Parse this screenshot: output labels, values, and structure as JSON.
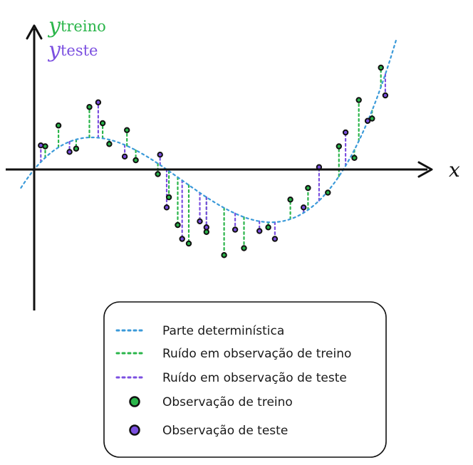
{
  "axes": {
    "x_label": "x",
    "y_train_symbol": "y",
    "y_train_subscript": "treino",
    "y_test_symbol": "y",
    "y_test_subscript": "teste"
  },
  "colors": {
    "deterministic": "#3b9ad9",
    "train": "#2ab54a",
    "test": "#7b4fe0",
    "axis": "#111111"
  },
  "legend": {
    "items": [
      {
        "label": "Parte determinística",
        "kind": "dotted-line",
        "color": "#3b9ad9"
      },
      {
        "label": "Ruído em observação de treino",
        "kind": "dotted-line",
        "color": "#2ab54a"
      },
      {
        "label": "Ruído em observação de teste",
        "kind": "dotted-line",
        "color": "#7b4fe0"
      },
      {
        "label": "Observação de treino",
        "kind": "dot",
        "color": "#2ab54a"
      },
      {
        "label": "Observação de teste",
        "kind": "dot",
        "color": "#7b4fe0"
      }
    ]
  },
  "chart_data": {
    "type": "scatter",
    "deterministic_curve": "cubic trend: rises to a local max, falls to a local min, rises steeply",
    "train_points": [
      {
        "x": 0.25,
        "y": 0.5
      },
      {
        "x": 0.55,
        "y": 0.95
      },
      {
        "x": 0.95,
        "y": 0.45
      },
      {
        "x": 1.25,
        "y": 1.35
      },
      {
        "x": 1.55,
        "y": 1.0
      },
      {
        "x": 1.7,
        "y": 0.55
      },
      {
        "x": 2.1,
        "y": 0.85
      },
      {
        "x": 2.3,
        "y": 0.2
      },
      {
        "x": 2.8,
        "y": -0.1
      },
      {
        "x": 3.05,
        "y": -0.6
      },
      {
        "x": 3.25,
        "y": -1.2
      },
      {
        "x": 3.5,
        "y": -1.6
      },
      {
        "x": 3.9,
        "y": -1.35
      },
      {
        "x": 4.3,
        "y": -1.85
      },
      {
        "x": 4.75,
        "y": -1.7
      },
      {
        "x": 5.3,
        "y": -1.25
      },
      {
        "x": 5.8,
        "y": -0.65
      },
      {
        "x": 6.2,
        "y": -0.4
      },
      {
        "x": 6.65,
        "y": -0.5
      },
      {
        "x": 6.9,
        "y": 0.5
      },
      {
        "x": 7.25,
        "y": 0.25
      },
      {
        "x": 7.35,
        "y": 1.5
      },
      {
        "x": 7.65,
        "y": 1.1
      },
      {
        "x": 7.85,
        "y": 2.2
      }
    ],
    "test_points": [
      {
        "x": 0.15,
        "y": 0.52
      },
      {
        "x": 0.8,
        "y": 0.38
      },
      {
        "x": 1.45,
        "y": 1.45
      },
      {
        "x": 2.05,
        "y": 0.28
      },
      {
        "x": 2.85,
        "y": 0.32
      },
      {
        "x": 3.0,
        "y": -0.82
      },
      {
        "x": 3.35,
        "y": -1.5
      },
      {
        "x": 3.75,
        "y": -1.12
      },
      {
        "x": 3.9,
        "y": -1.25
      },
      {
        "x": 4.55,
        "y": -1.3
      },
      {
        "x": 5.1,
        "y": -1.33
      },
      {
        "x": 5.45,
        "y": -1.5
      },
      {
        "x": 6.1,
        "y": -0.82
      },
      {
        "x": 6.45,
        "y": 0.05
      },
      {
        "x": 7.05,
        "y": 0.8
      },
      {
        "x": 7.55,
        "y": 1.05
      },
      {
        "x": 7.95,
        "y": 1.6
      }
    ]
  }
}
